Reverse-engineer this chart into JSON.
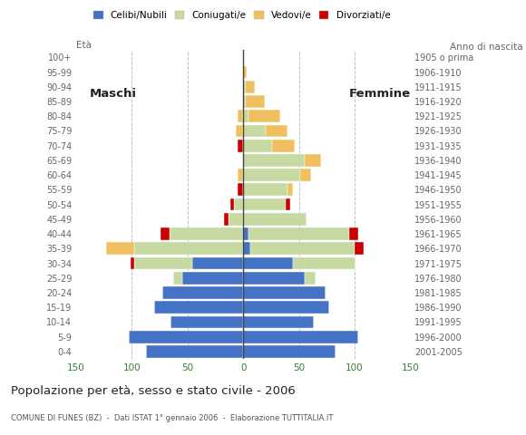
{
  "age_groups": [
    "0-4",
    "5-9",
    "10-14",
    "15-19",
    "20-24",
    "25-29",
    "30-34",
    "35-39",
    "40-44",
    "45-49",
    "50-54",
    "55-59",
    "60-64",
    "65-69",
    "70-74",
    "75-79",
    "80-84",
    "85-89",
    "90-94",
    "95-99",
    "100+"
  ],
  "birth_years": [
    "2001-2005",
    "1996-2000",
    "1991-1995",
    "1986-1990",
    "1981-1985",
    "1976-1980",
    "1971-1975",
    "1966-1970",
    "1961-1965",
    "1956-1960",
    "1951-1955",
    "1946-1950",
    "1941-1945",
    "1936-1940",
    "1931-1935",
    "1926-1930",
    "1921-1925",
    "1916-1920",
    "1911-1915",
    "1906-1910",
    "1905 o prima"
  ],
  "males": {
    "celibi": [
      87,
      103,
      65,
      80,
      73,
      55,
      46,
      0,
      0,
      0,
      0,
      0,
      0,
      0,
      0,
      0,
      0,
      0,
      0,
      0,
      0
    ],
    "coniugati": [
      0,
      0,
      0,
      0,
      0,
      8,
      52,
      98,
      66,
      13,
      8,
      0,
      0,
      0,
      0,
      0,
      0,
      0,
      0,
      0,
      0
    ],
    "vedovi": [
      0,
      0,
      0,
      0,
      0,
      0,
      0,
      25,
      0,
      0,
      0,
      0,
      5,
      0,
      0,
      7,
      5,
      0,
      0,
      0,
      0
    ],
    "divorziati": [
      0,
      0,
      0,
      0,
      0,
      0,
      3,
      0,
      8,
      4,
      4,
      5,
      0,
      0,
      5,
      0,
      0,
      0,
      0,
      0,
      0
    ]
  },
  "females": {
    "celibi": [
      83,
      103,
      63,
      77,
      74,
      55,
      45,
      6,
      5,
      0,
      0,
      0,
      0,
      0,
      0,
      0,
      0,
      0,
      0,
      0,
      0
    ],
    "coniugati": [
      0,
      0,
      0,
      0,
      0,
      10,
      56,
      94,
      90,
      57,
      38,
      40,
      51,
      55,
      26,
      20,
      5,
      2,
      2,
      0,
      0
    ],
    "vedovi": [
      0,
      0,
      0,
      0,
      0,
      0,
      0,
      0,
      0,
      0,
      0,
      5,
      10,
      15,
      20,
      20,
      28,
      17,
      8,
      3,
      0
    ],
    "divorziati": [
      0,
      0,
      0,
      0,
      0,
      0,
      0,
      8,
      8,
      0,
      4,
      0,
      0,
      0,
      0,
      0,
      0,
      0,
      0,
      0,
      0
    ]
  },
  "colors": {
    "celibi": "#4472C4",
    "coniugati": "#C5D9A0",
    "vedovi": "#F0C060",
    "divorziati": "#CC0000"
  },
  "xlim": 150,
  "title": "Popolazione per età, sesso e stato civile - 2006",
  "subtitle": "COMUNE DI FUNES (BZ)  -  Dati ISTAT 1° gennaio 2006  -  Elaborazione TUTTITALIA.IT",
  "label_maschi": "Maschi",
  "label_femmine": "Femmine",
  "legend_labels": [
    "Celibi/Nubili",
    "Coniugati/e",
    "Vedovi/e",
    "Divorziati/e"
  ],
  "anno_label": "Anno di nascita",
  "eta_label": "Età",
  "bg_color": "#FFFFFF",
  "grid_color": "#C0C0C0",
  "tick_color": "#3A7A3A",
  "label_color": "#666666"
}
